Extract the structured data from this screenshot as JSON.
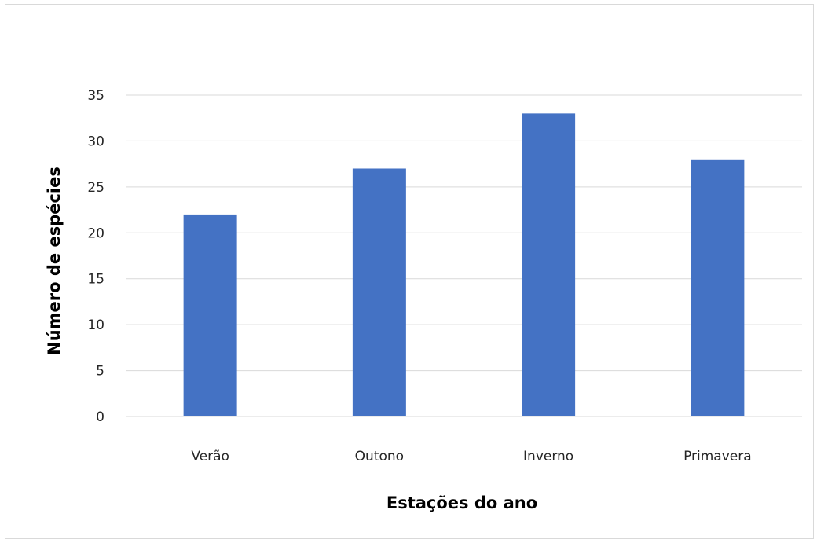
{
  "chart_data": {
    "type": "bar",
    "title": "",
    "xlabel": "Estações do ano",
    "ylabel": "Número de espécies",
    "categories": [
      "Verão",
      "Outono",
      "Inverno",
      "Primavera"
    ],
    "values": [
      22,
      27,
      33,
      28
    ],
    "ylim": [
      0,
      35
    ],
    "yticks": [
      "0",
      "5",
      "10",
      "15",
      "20",
      "25",
      "30",
      "35"
    ],
    "grid": true,
    "legend": "none",
    "colors": {
      "bar": "#4472C4",
      "grid": "#d9d9d9",
      "axis": "#d9d9d9"
    }
  }
}
